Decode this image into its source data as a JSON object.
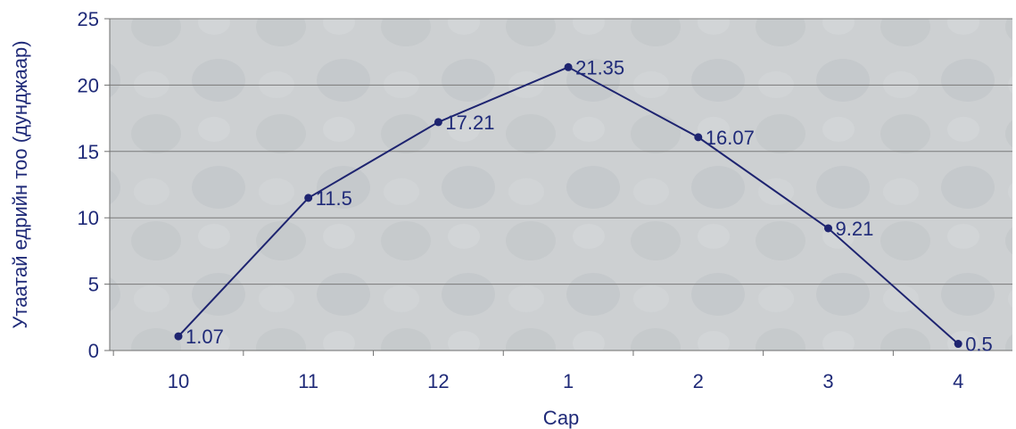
{
  "chart_data": {
    "type": "line",
    "categories": [
      "10",
      "11",
      "12",
      "1",
      "2",
      "3",
      "4"
    ],
    "series": [
      {
        "values": [
          1.07,
          11.5,
          17.21,
          21.35,
          16.07,
          9.21,
          0.5
        ]
      }
    ],
    "data_labels": [
      "1.07",
      "11.5",
      "17.21",
      "21.35",
      "16.07",
      "9.21",
      "0.5"
    ],
    "yticks": [
      "0",
      "5",
      "10",
      "15",
      "20",
      "25"
    ],
    "ylim": [
      0,
      25
    ],
    "xlabel": "Сар",
    "ylabel": "Утаатай едрийн тоо (дунджаар)",
    "grid": true,
    "legend": "none",
    "colors": {
      "line": "#1e2470",
      "marker": "#1e2470",
      "grid": "#7a7a7a",
      "plot_bg": "#cdd1d3",
      "text": "#1f2a78"
    }
  }
}
